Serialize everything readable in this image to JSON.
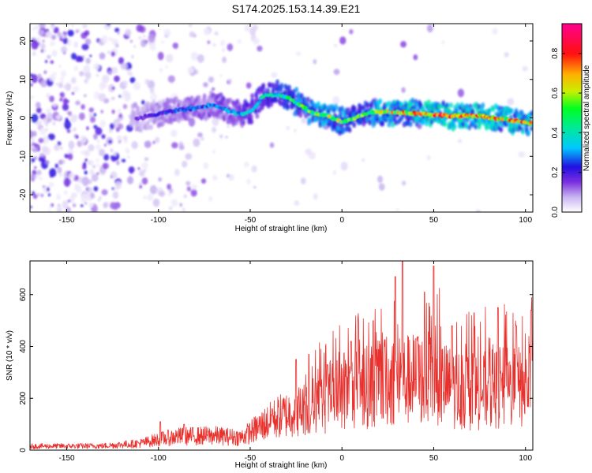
{
  "figure_title": "S174.2025.153.14.39.E21",
  "chart_data": [
    {
      "type": "heatmap",
      "title": "",
      "xlabel": "Height of straight line (km)",
      "ylabel": "Frequency (Hz)",
      "xlim": [
        -170,
        104
      ],
      "ylim": [
        -24.5,
        24.5
      ],
      "xticks": [
        -150,
        -100,
        -50,
        0,
        50,
        100
      ],
      "yticks": [
        -20,
        -10,
        0,
        10,
        20
      ],
      "colorbar": {
        "label": "Normalized spectral amplitude",
        "range": [
          0,
          0.95
        ],
        "ticks": [
          0.0,
          0.2,
          0.4,
          0.6,
          0.8
        ],
        "colormap": [
          "#ffffff",
          "#d8c8f4",
          "#7a2ee0",
          "#2a10d8",
          "#00c8ff",
          "#00ff40",
          "#f0f000",
          "#ff0000",
          "#ff0090"
        ]
      },
      "ridge": {
        "description_points": [
          [
            -110,
            0
          ],
          [
            -100,
            1
          ],
          [
            -90,
            2
          ],
          [
            -80,
            2.5
          ],
          [
            -70,
            3.5
          ],
          [
            -60,
            1.5
          ],
          [
            -55,
            1
          ],
          [
            -50,
            1.5
          ],
          [
            -42,
            6
          ],
          [
            -35,
            6
          ],
          [
            -28,
            5
          ],
          [
            -22,
            3
          ],
          [
            -15,
            1
          ],
          [
            -8,
            0.5
          ],
          [
            0,
            -1
          ],
          [
            5,
            -0.5
          ],
          [
            15,
            1.5
          ],
          [
            30,
            1.5
          ],
          [
            45,
            1
          ],
          [
            60,
            0.5
          ],
          [
            75,
            0.5
          ],
          [
            90,
            -0.5
          ],
          [
            103,
            -1.5
          ]
        ],
        "peak_amplitude_by_x": [
          [
            -110,
            0.2
          ],
          [
            -90,
            0.3
          ],
          [
            -70,
            0.35
          ],
          [
            -50,
            0.45
          ],
          [
            -40,
            0.5
          ],
          [
            -25,
            0.6
          ],
          [
            -10,
            0.75
          ],
          [
            0,
            0.7
          ],
          [
            10,
            0.6
          ],
          [
            25,
            0.75
          ],
          [
            40,
            0.85
          ],
          [
            50,
            0.9
          ],
          [
            60,
            0.9
          ],
          [
            75,
            0.85
          ],
          [
            90,
            0.85
          ],
          [
            103,
            0.8
          ]
        ]
      }
    },
    {
      "type": "line",
      "title": "",
      "xlabel": "Height of straight line (km)",
      "ylabel": "SNR (10 * v/v)",
      "xlim": [
        -170,
        104
      ],
      "ylim": [
        0,
        730
      ],
      "xticks": [
        -150,
        -100,
        -50,
        0,
        50,
        100
      ],
      "yticks": [
        0,
        200,
        400,
        600
      ],
      "color": "#e8302c",
      "envelope": [
        [
          -170,
          20
        ],
        [
          -130,
          22
        ],
        [
          -110,
          35
        ],
        [
          -100,
          55
        ],
        [
          -90,
          70
        ],
        [
          -70,
          75
        ],
        [
          -55,
          65
        ],
        [
          -45,
          120
        ],
        [
          -35,
          170
        ],
        [
          -25,
          200
        ],
        [
          -15,
          230
        ],
        [
          -5,
          260
        ],
        [
          5,
          300
        ],
        [
          15,
          330
        ],
        [
          25,
          350
        ],
        [
          35,
          360
        ],
        [
          45,
          370
        ],
        [
          50,
          360
        ],
        [
          60,
          320
        ],
        [
          70,
          300
        ],
        [
          80,
          310
        ],
        [
          90,
          320
        ],
        [
          104,
          330
        ]
      ],
      "peaks": [
        [
          -99,
          110
        ],
        [
          -86,
          100
        ],
        [
          -38,
          160
        ],
        [
          -25,
          350
        ],
        [
          -18,
          370
        ],
        [
          -8,
          330
        ],
        [
          5,
          420
        ],
        [
          17,
          500
        ],
        [
          29,
          670
        ],
        [
          33,
          730
        ],
        [
          45,
          610
        ],
        [
          50,
          710
        ],
        [
          60,
          480
        ],
        [
          72,
          530
        ],
        [
          85,
          550
        ],
        [
          95,
          480
        ],
        [
          103,
          540
        ]
      ]
    }
  ]
}
